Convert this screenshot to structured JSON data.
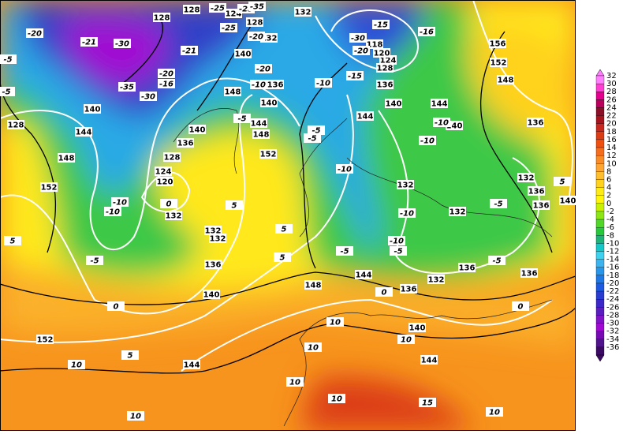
{
  "map": {
    "colorbar": {
      "labels": [
        32,
        30,
        28,
        26,
        24,
        22,
        20,
        18,
        16,
        14,
        12,
        10,
        8,
        6,
        4,
        2,
        0,
        -2,
        -4,
        -6,
        -8,
        -10,
        -12,
        -14,
        -16,
        -18,
        -20,
        -22,
        -24,
        -26,
        -28,
        -30,
        -32,
        -34,
        -36
      ],
      "colors": [
        "#ff7fff",
        "#ff3fd4",
        "#e4008f",
        "#b8005c",
        "#8c0f28",
        "#a8141e",
        "#c8281e",
        "#dc3c14",
        "#f0500f",
        "#f56e1e",
        "#fa8c28",
        "#ffa532",
        "#ffbe2d",
        "#ffd21e",
        "#ffeb14",
        "#fff50a",
        "#c8f000",
        "#8ce614",
        "#50d728",
        "#28c83c",
        "#1eb478",
        "#14c8c8",
        "#3cd2f0",
        "#3cb4f0",
        "#2896eb",
        "#1e78e6",
        "#1e5ae1",
        "#283cd2",
        "#3c28c8",
        "#5a1ebe",
        "#8214c8",
        "#a00ad2",
        "#780ab4",
        "#50148c",
        "#3c0a64"
      ]
    },
    "height_labels": [
      128,
      128,
      124,
      132,
      132,
      128,
      140,
      136,
      148,
      140,
      144,
      148,
      136,
      128,
      124,
      120,
      140,
      152,
      132,
      132,
      132,
      136,
      140,
      152,
      144,
      148,
      144,
      136,
      140,
      144,
      132,
      136,
      136,
      132,
      132,
      140,
      144,
      140,
      144,
      136,
      128,
      124,
      120,
      118,
      156,
      152,
      148,
      136,
      132,
      136,
      140,
      136,
      128,
      148,
      152,
      140,
      144
    ],
    "temperature_labels": [
      -20,
      -21,
      -30,
      -35,
      -30,
      -16,
      -20,
      -21,
      -25,
      -20,
      -25,
      -25,
      -35,
      -20,
      -10,
      -5,
      -5,
      -5,
      -10,
      -15,
      -30,
      -20,
      -15,
      -16,
      -10,
      -10,
      -10,
      -10,
      -5,
      -10,
      -5,
      -5,
      -5,
      -5,
      -10,
      -10,
      -5,
      -5,
      0,
      0,
      0,
      5,
      5,
      5,
      5,
      5,
      10,
      10,
      10,
      10,
      10,
      10,
      10,
      10,
      15,
      0,
      5
    ]
  }
}
